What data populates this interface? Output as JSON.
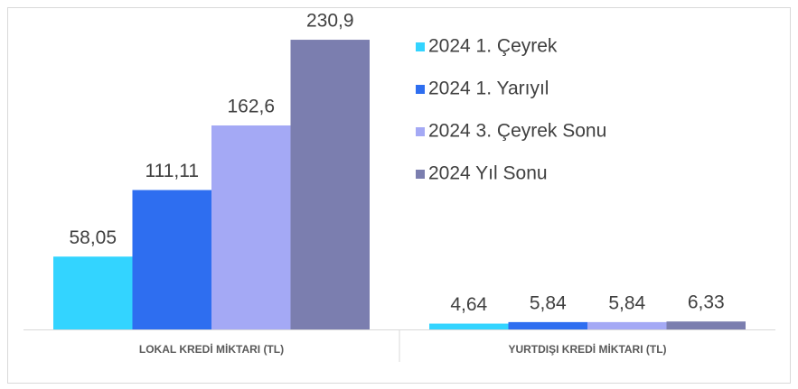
{
  "chart_data": {
    "type": "bar",
    "categories": [
      "LOKAL KREDİ MİKTARI (TL)",
      "YURTDIŞI KREDİ MİKTARI (TL)"
    ],
    "series": [
      {
        "name": "2024 1. Çeyrek",
        "color": "#33d4ff",
        "values": [
          58.05,
          4.64
        ],
        "value_labels": [
          "58,05",
          "4,64"
        ]
      },
      {
        "name": "2024 1. Yarıyıl",
        "color": "#2e6ef0",
        "values": [
          111.11,
          5.84
        ],
        "value_labels": [
          "111,11",
          "5,84"
        ]
      },
      {
        "name": "2024 3. Çeyrek Sonu",
        "color": "#a4a9f5",
        "values": [
          162.6,
          5.84
        ],
        "value_labels": [
          "162,6",
          "5,84"
        ]
      },
      {
        "name": "2024 Yıl Sonu",
        "color": "#7b7eaf",
        "values": [
          230.9,
          6.33
        ],
        "value_labels": [
          "230,9",
          "6,33"
        ]
      }
    ],
    "ylim": [
      0,
      250
    ],
    "legend": "top-right"
  }
}
